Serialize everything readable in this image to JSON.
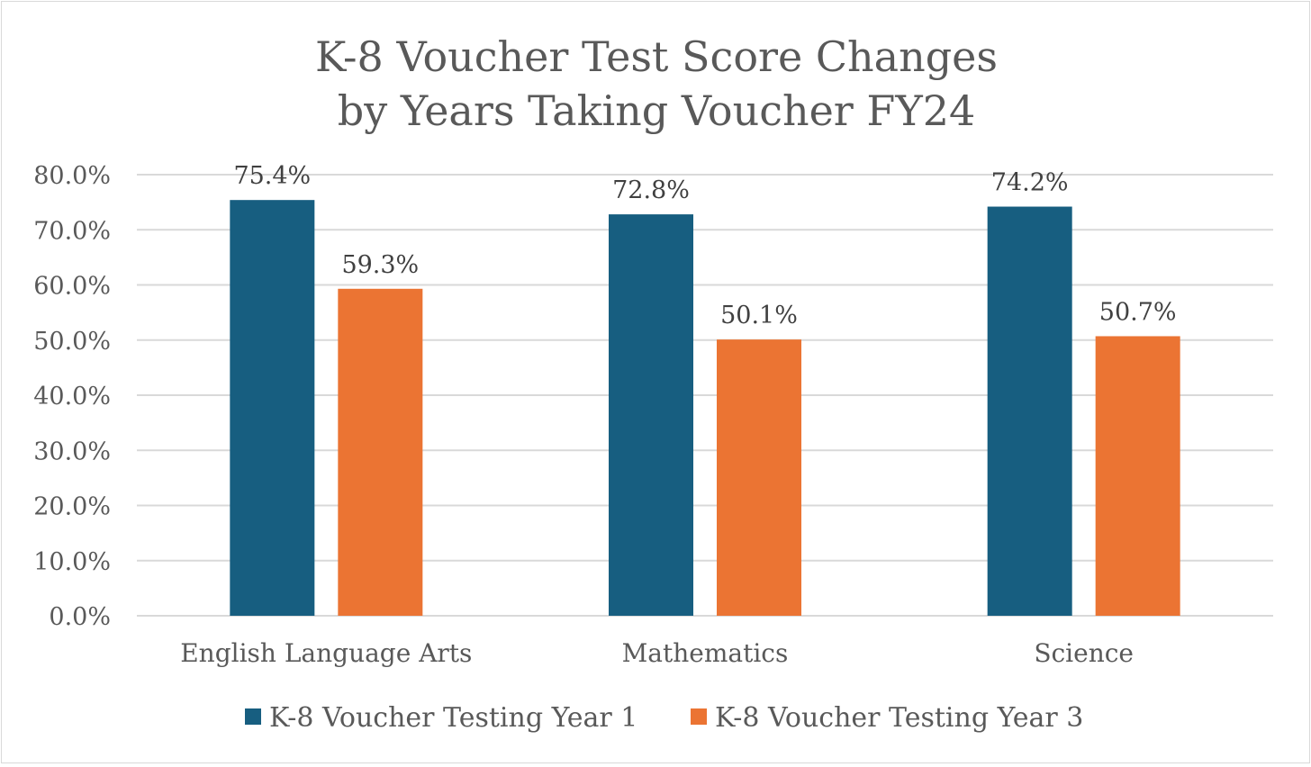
{
  "chart_data": {
    "type": "bar",
    "title": [
      "K-8 Voucher Test Score Changes",
      "by Years Taking Voucher FY24"
    ],
    "categories": [
      "English Language Arts",
      "Mathematics",
      "Science"
    ],
    "series": [
      {
        "name": "K-8 Voucher Testing Year 1",
        "color": "#175e80",
        "values": [
          75.4,
          72.8,
          74.2
        ],
        "labels": [
          "75.4%",
          "72.8%",
          "74.2%"
        ]
      },
      {
        "name": "K-8 Voucher Testing Year 3",
        "color": "#eb7433",
        "values": [
          59.3,
          50.1,
          50.7
        ],
        "labels": [
          "59.3%",
          "50.1%",
          "50.7%"
        ]
      }
    ],
    "yticks": [
      "0.0%",
      "10.0%",
      "20.0%",
      "30.0%",
      "40.0%",
      "50.0%",
      "60.0%",
      "70.0%",
      "80.0%"
    ],
    "ylim": [
      0,
      80
    ],
    "xlabel": "",
    "ylabel": "",
    "grid": true,
    "legend_position": "bottom-center"
  }
}
